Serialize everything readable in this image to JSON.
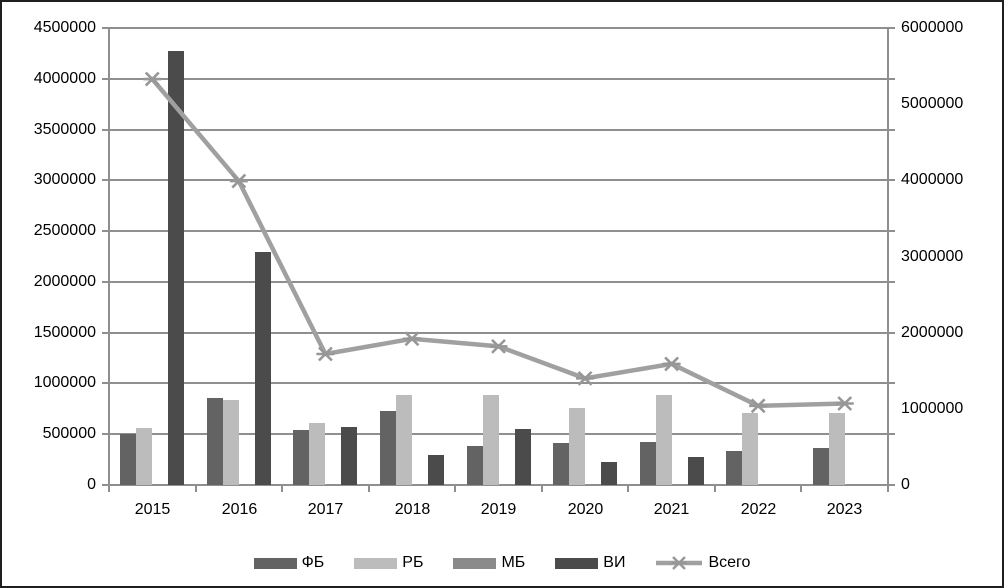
{
  "chart_data": {
    "type": "bar",
    "subtype": "grouped-bar-with-line",
    "title": "",
    "categories": [
      "2015",
      "2016",
      "2017",
      "2018",
      "2019",
      "2020",
      "2021",
      "2022",
      "2023"
    ],
    "series": [
      {
        "name": "ФБ",
        "id": "fb",
        "kind": "bar",
        "axis": "left",
        "color": "#636363",
        "values": [
          500000,
          860000,
          540000,
          730000,
          380000,
          410000,
          420000,
          330000,
          360000
        ]
      },
      {
        "name": "РБ",
        "id": "rb",
        "kind": "bar",
        "axis": "left",
        "color": "#bcbcbc",
        "values": [
          560000,
          840000,
          610000,
          890000,
          890000,
          760000,
          890000,
          710000,
          710000
        ]
      },
      {
        "name": "МБ",
        "id": "mb",
        "kind": "bar",
        "axis": "left",
        "color": "#8a8a8a",
        "values": [
          0,
          0,
          0,
          0,
          0,
          0,
          0,
          0,
          0
        ]
      },
      {
        "name": "ВИ",
        "id": "vi",
        "kind": "bar",
        "axis": "left",
        "color": "#4b4b4b",
        "values": [
          4270000,
          2290000,
          570000,
          300000,
          550000,
          230000,
          280000,
          0,
          0
        ]
      },
      {
        "name": "Всего",
        "id": "vsego",
        "kind": "line",
        "axis": "right",
        "color": "#a0a0a0",
        "marker": "asterisk-x",
        "values": [
          5330000,
          3990000,
          1720000,
          1920000,
          1820000,
          1400000,
          1590000,
          1040000,
          1070000
        ]
      }
    ],
    "axes": {
      "left": {
        "min": 0,
        "max": 4500000,
        "step": 500000,
        "tick_labels": [
          "4500000",
          "4000000",
          "3500000",
          "3000000",
          "2500000",
          "2000000",
          "1500000",
          "1000000",
          "500000",
          "0"
        ]
      },
      "right": {
        "min": 0,
        "max": 6000000,
        "label_step": 1000000,
        "minor_tick_step": 500000,
        "tick_labels": [
          "6000000",
          "5000000",
          "4000000",
          "3000000",
          "2000000",
          "1000000",
          "0"
        ]
      }
    },
    "grid": true,
    "legend_position": "bottom",
    "colors": {
      "gridline": "#8f8f8f",
      "axis_text": "#000000",
      "background": "#ffffff",
      "figure_border": "#1f1f1f"
    }
  }
}
